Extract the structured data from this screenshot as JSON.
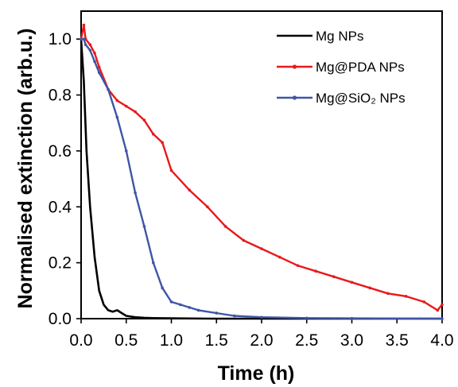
{
  "chart_data": {
    "type": "line",
    "title": "",
    "xlabel": "Time (h)",
    "ylabel": "Normalised extinction (arb.u.)",
    "xlim": [
      0,
      4
    ],
    "ylim": [
      0,
      1.1
    ],
    "xticks": [
      "0.0",
      "0.5",
      "1.0",
      "1.5",
      "2.0",
      "2.5",
      "3.0",
      "3.5",
      "4.0"
    ],
    "yticks": [
      "0.0",
      "0.2",
      "0.4",
      "0.6",
      "0.8",
      "1.0"
    ],
    "grid": false,
    "legend_position": "top-right",
    "series": [
      {
        "name": "Mg NPs",
        "color": "#000000",
        "marker": "none",
        "x": [
          0,
          0.03,
          0.06,
          0.1,
          0.15,
          0.2,
          0.25,
          0.3,
          0.35,
          0.4,
          0.45,
          0.5,
          0.6,
          0.7,
          0.8,
          1.0,
          1.5,
          2.0,
          3.0,
          4.0
        ],
        "y": [
          1.0,
          0.85,
          0.6,
          0.4,
          0.22,
          0.1,
          0.05,
          0.03,
          0.025,
          0.03,
          0.02,
          0.01,
          0.005,
          0.003,
          0.002,
          0.001,
          0.0,
          0.0,
          0.0,
          0.0
        ]
      },
      {
        "name": "Mg@PDA NPs",
        "color": "#e8191b",
        "marker": "dot",
        "x": [
          0,
          0.03,
          0.05,
          0.1,
          0.15,
          0.2,
          0.3,
          0.4,
          0.5,
          0.6,
          0.7,
          0.8,
          0.9,
          1.0,
          1.2,
          1.4,
          1.6,
          1.8,
          2.0,
          2.2,
          2.4,
          2.6,
          2.8,
          3.0,
          3.2,
          3.4,
          3.6,
          3.8,
          3.95,
          4.0
        ],
        "y": [
          1.0,
          1.05,
          1.0,
          0.98,
          0.95,
          0.9,
          0.82,
          0.78,
          0.76,
          0.74,
          0.71,
          0.66,
          0.63,
          0.53,
          0.46,
          0.4,
          0.33,
          0.28,
          0.25,
          0.22,
          0.19,
          0.17,
          0.15,
          0.13,
          0.11,
          0.09,
          0.08,
          0.06,
          0.03,
          0.05
        ]
      },
      {
        "name": "Mg@SiO₂ NPs",
        "color": "#3f55a6",
        "marker": "dot",
        "x": [
          0,
          0.03,
          0.05,
          0.1,
          0.15,
          0.2,
          0.3,
          0.4,
          0.5,
          0.6,
          0.7,
          0.8,
          0.9,
          1.0,
          1.1,
          1.2,
          1.3,
          1.5,
          1.7,
          2.0,
          2.5,
          3.0,
          4.0
        ],
        "y": [
          1.0,
          1.0,
          0.98,
          0.96,
          0.92,
          0.88,
          0.82,
          0.72,
          0.6,
          0.45,
          0.33,
          0.2,
          0.11,
          0.06,
          0.05,
          0.04,
          0.03,
          0.02,
          0.01,
          0.005,
          0.002,
          0.001,
          0.0
        ]
      }
    ]
  }
}
